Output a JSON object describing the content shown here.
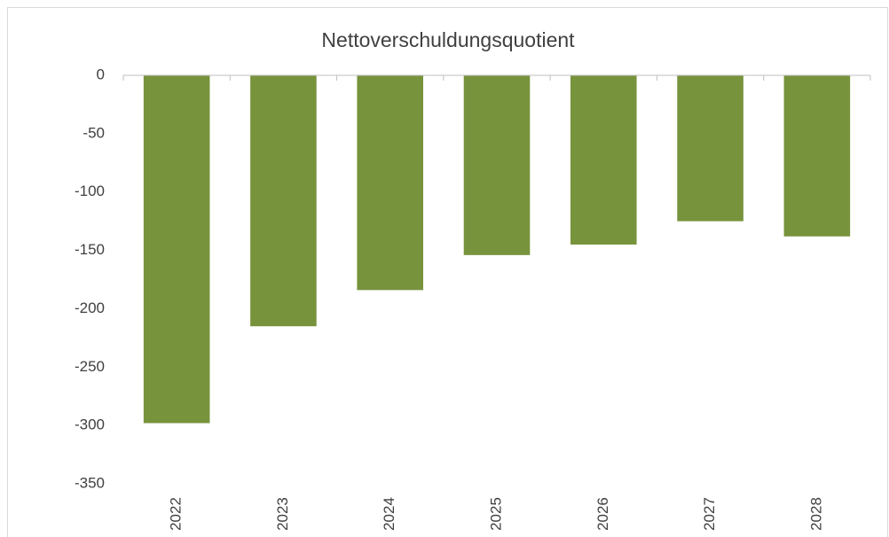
{
  "chart_data": {
    "type": "bar",
    "title": "Nettoverschuldungsquotient",
    "categories": [
      "2022",
      "2023",
      "2024",
      "2025",
      "2026",
      "2027",
      "2028"
    ],
    "values": [
      -298,
      -215,
      -184,
      -154,
      -145,
      -125,
      -138
    ],
    "color": "#77933c",
    "ylim": [
      -350,
      0
    ],
    "yticks": [
      0,
      -50,
      -100,
      -150,
      -200,
      -250,
      -300,
      -350
    ],
    "grid": false
  }
}
